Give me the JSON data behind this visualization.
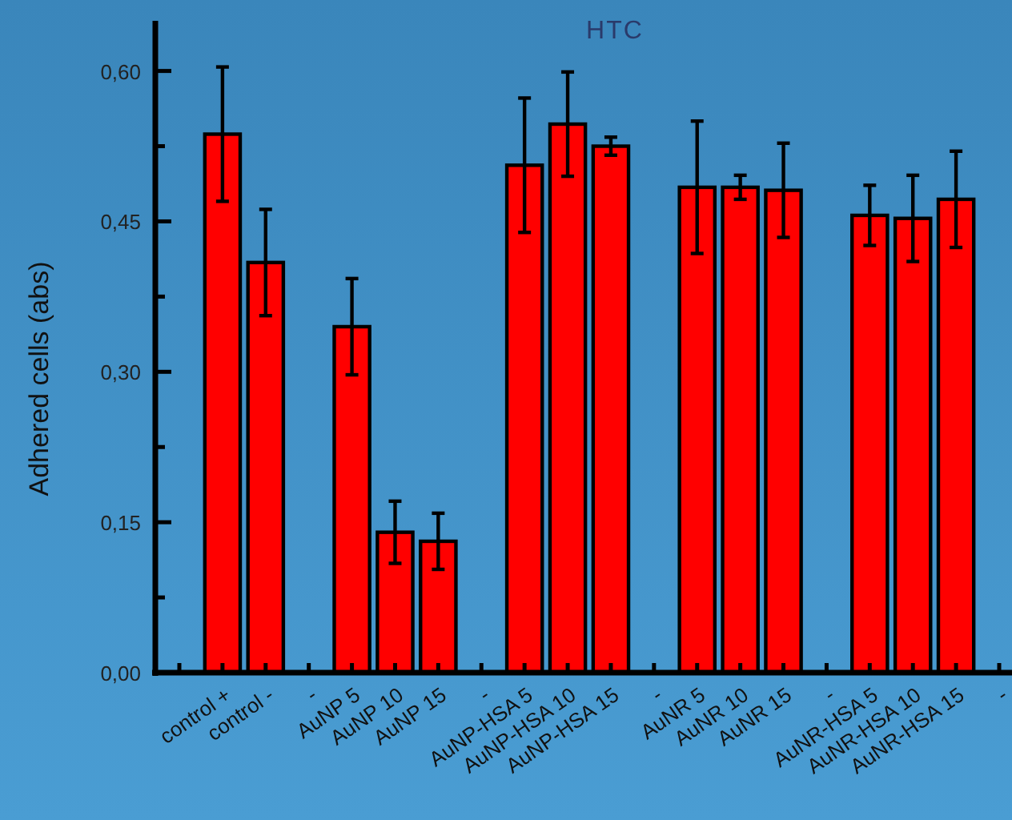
{
  "chart_data": {
    "type": "bar",
    "title": "HTC",
    "ylabel": "Adhered cells (abs)",
    "categories": [
      null,
      "control +",
      "control -",
      "-",
      "AuNP 5",
      "AuNP 10",
      "AuNP 15",
      "-",
      "AuNP-HSA 5",
      "AuNP-HSA 10",
      "AuNP-HSA 15",
      "-",
      "AuNR 5",
      "AuNR 10",
      "AuNR 15",
      "-",
      "AuNR-HSA 5",
      "AuNR-HSA 10",
      "AuNR-HSA 15",
      "-"
    ],
    "values": [
      null,
      0.537,
      0.409,
      null,
      0.345,
      0.14,
      0.131,
      null,
      0.506,
      0.547,
      0.525,
      null,
      0.484,
      0.484,
      0.481,
      null,
      0.456,
      0.453,
      0.472,
      null
    ],
    "errors": [
      null,
      0.067,
      0.053,
      null,
      0.048,
      0.031,
      0.028,
      null,
      0.067,
      0.052,
      0.009,
      null,
      0.066,
      0.012,
      0.047,
      null,
      0.03,
      0.043,
      0.048,
      null
    ],
    "color": "#ff0000",
    "ylim": [
      0,
      0.65
    ],
    "yticks": [
      {
        "value": 0,
        "label": "0,00"
      },
      {
        "value": 0.075,
        "label": null
      },
      {
        "value": 0.15,
        "label": "0,15"
      },
      {
        "value": 0.225,
        "label": null
      },
      {
        "value": 0.3,
        "label": "0,30"
      },
      {
        "value": 0.375,
        "label": null
      },
      {
        "value": 0.45,
        "label": "0,45"
      },
      {
        "value": 0.525,
        "label": null
      },
      {
        "value": 0.6,
        "label": "0,60"
      }
    ],
    "grid": false
  }
}
